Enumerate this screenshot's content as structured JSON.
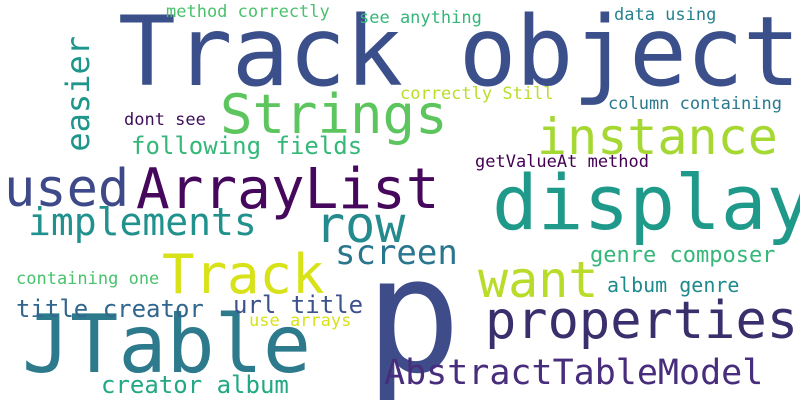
{
  "words": [
    {
      "id": "track-object",
      "text": "Track object",
      "color": "#3b4f8a"
    },
    {
      "id": "p",
      "text": "p",
      "color": "#3e4d8a"
    },
    {
      "id": "display",
      "text": "display",
      "color": "#1f9a8a"
    },
    {
      "id": "jtable",
      "text": "JTable",
      "color": "#2c7a8c"
    },
    {
      "id": "arraylist",
      "text": "ArrayList",
      "color": "#46085c"
    },
    {
      "id": "strings",
      "text": "Strings",
      "color": "#5cc55e"
    },
    {
      "id": "instance",
      "text": "instance",
      "color": "#a6d833"
    },
    {
      "id": "properties",
      "text": "properties",
      "color": "#3b2e6c"
    },
    {
      "id": "abstracttablemodel",
      "text": "AbstractTableModel",
      "color": "#472d7b"
    },
    {
      "id": "used",
      "text": "used",
      "color": "#3e4989"
    },
    {
      "id": "row",
      "text": "row",
      "color": "#238a8d"
    },
    {
      "id": "track",
      "text": "Track",
      "color": "#d8e219"
    },
    {
      "id": "want",
      "text": "want",
      "color": "#b9dc2a"
    },
    {
      "id": "implements",
      "text": "implements",
      "color": "#20918c"
    },
    {
      "id": "easier",
      "text": "easier",
      "color": "#1f968b"
    },
    {
      "id": "screen",
      "text": "screen",
      "color": "#2a768e"
    },
    {
      "id": "following-fields",
      "text": "following fields",
      "color": "#35b779"
    },
    {
      "id": "creator-album",
      "text": "creator album",
      "color": "#22a884"
    },
    {
      "id": "title-creator",
      "text": "title creator",
      "color": "#31668e"
    },
    {
      "id": "url-title",
      "text": "url title",
      "color": "#3b528b"
    },
    {
      "id": "genre-composer",
      "text": "genre composer",
      "color": "#35b779"
    },
    {
      "id": "album-genre",
      "text": "album genre",
      "color": "#1f8a8c"
    },
    {
      "id": "dont-see",
      "text": "dont see",
      "color": "#3f0e5a"
    },
    {
      "id": "getvalueat-method",
      "text": "getValueAt method",
      "color": "#440154"
    },
    {
      "id": "column-containing",
      "text": "column containing",
      "color": "#2a788e"
    },
    {
      "id": "data-using",
      "text": "data using",
      "color": "#26828e"
    },
    {
      "id": "see-anything",
      "text": "see anything",
      "color": "#34b679"
    },
    {
      "id": "method-correctly",
      "text": "method correctly",
      "color": "#4ac16d"
    },
    {
      "id": "correctly-still",
      "text": "correctly Still",
      "color": "#b8de29"
    },
    {
      "id": "containing-one",
      "text": "containing one",
      "color": "#4ac16d"
    },
    {
      "id": "use-arrays",
      "text": "use arrays",
      "color": "#d8e219"
    }
  ]
}
